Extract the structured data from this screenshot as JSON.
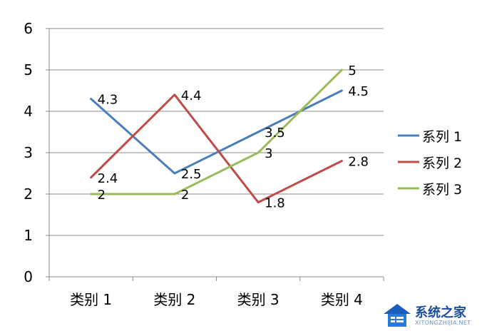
{
  "chart_data": {
    "type": "line",
    "categories": [
      "类别 1",
      "类别 2",
      "类别 3",
      "类别 4"
    ],
    "series": [
      {
        "name": "系列 1",
        "values": [
          4.3,
          2.5,
          3.5,
          4.5
        ],
        "color": "#4a7ebb",
        "labels": [
          "4.3",
          "2.5",
          "3.5",
          "4.5"
        ]
      },
      {
        "name": "系列 2",
        "values": [
          2.4,
          4.4,
          1.8,
          2.8
        ],
        "color": "#be4b48",
        "labels": [
          "2.4",
          "4.4",
          "1.8",
          "2.8"
        ]
      },
      {
        "name": "系列 3",
        "values": [
          2,
          2,
          3,
          5
        ],
        "color": "#9bbb59",
        "labels": [
          "2",
          "2",
          "3",
          "5"
        ]
      }
    ],
    "ylim": [
      0,
      6
    ],
    "yticks": [
      "0",
      "1",
      "2",
      "3",
      "4",
      "5",
      "6"
    ],
    "grid": true,
    "legend": "right"
  },
  "watermark": {
    "text": "系统之家",
    "subtext": "XITONGZHIJIA.NET"
  }
}
